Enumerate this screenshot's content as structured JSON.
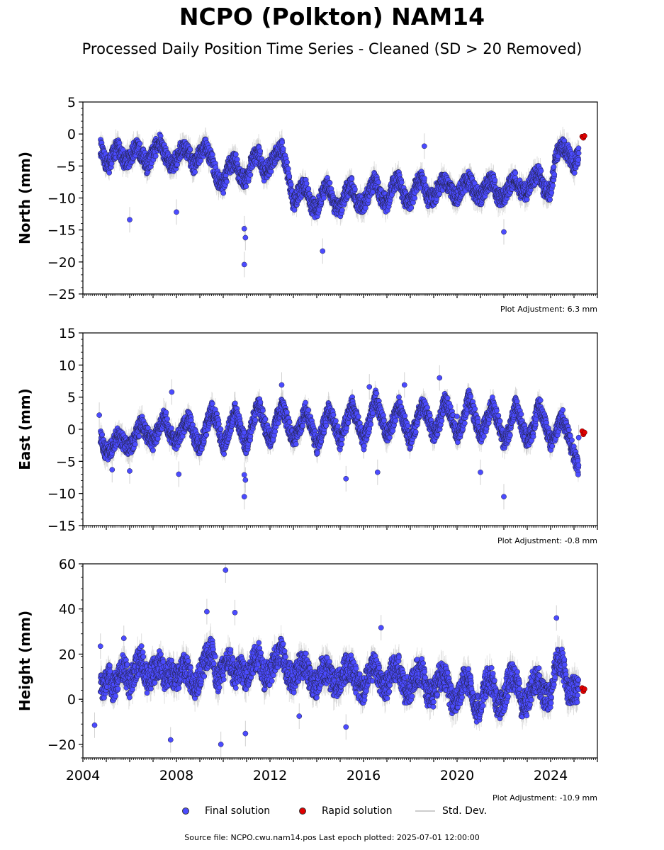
{
  "figure": {
    "title": "NCPO (Polkton) NAM14",
    "subtitle": "Processed Daily Position Time Series - Cleaned (SD > 20 Removed)",
    "footer": "Source file: NCPO.cwu.nam14.pos  Last epoch plotted: 2025-07-01 12:00:00",
    "legend": {
      "final": "Final solution",
      "rapid": "Rapid solution",
      "std": "Std. Dev."
    },
    "colors": {
      "final": "#4b4bff",
      "rapid": "#e00000",
      "std": "#c8c8c8",
      "edge": "#202040"
    }
  },
  "chart_data": [
    {
      "type": "scatter",
      "ylabel": "North (mm)",
      "adjustment": "Plot Adjustment: 6.3 mm",
      "xlim": [
        2004.0,
        2026.0
      ],
      "ylim": [
        -25,
        5
      ],
      "yticks": [
        5,
        0,
        -5,
        -10,
        -15,
        -20,
        -25
      ],
      "series": [
        {
          "name": "Final solution",
          "x": [
            2004.75,
            2004.9,
            2005.1,
            2005.3,
            2005.5,
            2005.75,
            2006.0,
            2006.25,
            2006.5,
            2006.75,
            2007.0,
            2007.25,
            2007.5,
            2007.75,
            2008.0,
            2008.25,
            2008.5,
            2008.75,
            2009.0,
            2009.25,
            2009.5,
            2009.75,
            2010.0,
            2010.25,
            2010.5,
            2010.75,
            2011.0,
            2011.25,
            2011.5,
            2011.75,
            2012.0,
            2012.25,
            2012.5,
            2012.75,
            2013.0,
            2013.25,
            2013.5,
            2013.75,
            2014.0,
            2014.25,
            2014.5,
            2014.75,
            2015.0,
            2015.25,
            2015.5,
            2015.75,
            2016.0,
            2016.25,
            2016.5,
            2016.75,
            2017.0,
            2017.25,
            2017.5,
            2017.75,
            2018.0,
            2018.25,
            2018.5,
            2018.75,
            2019.0,
            2019.25,
            2019.5,
            2019.75,
            2020.0,
            2020.25,
            2020.5,
            2020.75,
            2021.0,
            2021.25,
            2021.5,
            2021.75,
            2022.0,
            2022.25,
            2022.5,
            2022.75,
            2023.0,
            2023.25,
            2023.5,
            2023.75,
            2024.0,
            2024.25,
            2024.5,
            2024.75,
            2025.0,
            2025.2
          ],
          "y": [
            -2,
            -4,
            -5,
            -3,
            -2,
            -4,
            -4,
            -2,
            -3,
            -5,
            -3,
            -1,
            -3,
            -5,
            -4,
            -2,
            -3,
            -5,
            -3,
            -2,
            -4,
            -7,
            -8,
            -5,
            -4,
            -7,
            -7,
            -4,
            -3,
            -6,
            -5,
            -3,
            -2,
            -6,
            -11,
            -9,
            -8,
            -11,
            -12,
            -9,
            -8,
            -11,
            -12,
            -9,
            -8,
            -11,
            -11,
            -9,
            -7,
            -10,
            -11,
            -8,
            -7,
            -10,
            -11,
            -8,
            -7,
            -10,
            -10,
            -8,
            -7,
            -9,
            -10,
            -8,
            -7,
            -9,
            -10,
            -8,
            -7,
            -10,
            -10,
            -8,
            -7,
            -9,
            -9,
            -7,
            -6,
            -9,
            -9,
            -3,
            -2,
            -3,
            -5,
            -3
          ]
        },
        {
          "name": "Rapid solution",
          "x": [
            2025.35,
            2025.4,
            2025.45
          ],
          "y": [
            -0.4,
            -0.6,
            -0.3
          ]
        }
      ],
      "outliers": {
        "x": [
          2006.0,
          2008.0,
          2010.9,
          2010.95,
          2010.9,
          2014.25,
          2018.6,
          2022.0,
          2025.2
        ],
        "y": [
          -13.4,
          -12.2,
          -14.8,
          -16.2,
          -20.4,
          -18.3,
          -1.9,
          -15.3,
          -3
        ]
      }
    },
    {
      "type": "scatter",
      "ylabel": "East (mm)",
      "adjustment": "Plot Adjustment: -0.8 mm",
      "xlim": [
        2004.0,
        2026.0
      ],
      "ylim": [
        -15,
        15
      ],
      "yticks": [
        15,
        10,
        5,
        0,
        -5,
        -10,
        -15
      ],
      "series": [
        {
          "name": "Final solution",
          "x": [
            2004.75,
            2004.9,
            2005.1,
            2005.3,
            2005.5,
            2005.75,
            2006.0,
            2006.25,
            2006.5,
            2006.75,
            2007.0,
            2007.25,
            2007.5,
            2007.75,
            2008.0,
            2008.25,
            2008.5,
            2008.75,
            2009.0,
            2009.25,
            2009.5,
            2009.75,
            2010.0,
            2010.25,
            2010.5,
            2010.75,
            2011.0,
            2011.25,
            2011.5,
            2011.75,
            2012.0,
            2012.25,
            2012.5,
            2012.75,
            2013.0,
            2013.25,
            2013.5,
            2013.75,
            2014.0,
            2014.25,
            2014.5,
            2014.75,
            2015.0,
            2015.25,
            2015.5,
            2015.75,
            2016.0,
            2016.25,
            2016.5,
            2016.75,
            2017.0,
            2017.25,
            2017.5,
            2017.75,
            2018.0,
            2018.25,
            2018.5,
            2018.75,
            2019.0,
            2019.25,
            2019.5,
            2019.75,
            2020.0,
            2020.25,
            2020.5,
            2020.75,
            2021.0,
            2021.25,
            2021.5,
            2021.75,
            2022.0,
            2022.25,
            2022.5,
            2022.75,
            2023.0,
            2023.25,
            2023.5,
            2023.75,
            2024.0,
            2024.25,
            2024.5,
            2024.75,
            2025.0,
            2025.2
          ],
          "y": [
            -1,
            -3,
            -4,
            -2,
            -1,
            -2,
            -3,
            -1,
            1,
            -1,
            -2,
            0,
            2,
            -1,
            -2,
            0,
            2,
            -1,
            -3,
            0,
            3,
            1,
            -3,
            0,
            3,
            0,
            -3,
            1,
            4,
            1,
            -2,
            1,
            4,
            1,
            -2,
            0,
            3,
            1,
            -3,
            0,
            3,
            1,
            -2,
            1,
            4,
            1,
            -2,
            1,
            5,
            2,
            -1,
            1,
            4,
            1,
            -2,
            1,
            4,
            2,
            -1,
            1,
            5,
            2,
            -1,
            1,
            5,
            2,
            -1,
            1,
            4,
            1,
            -2,
            0,
            4,
            1,
            -2,
            0,
            4,
            1,
            -2,
            0,
            2,
            -1,
            -4,
            -6
          ]
        },
        {
          "name": "Rapid solution",
          "x": [
            2025.35,
            2025.4,
            2025.45
          ],
          "y": [
            -0.3,
            -0.8,
            -0.5
          ]
        }
      ],
      "outliers": {
        "x": [
          2004.7,
          2005.25,
          2006.0,
          2007.8,
          2008.1,
          2010.9,
          2010.95,
          2010.9,
          2012.5,
          2015.25,
          2016.25,
          2016.6,
          2017.75,
          2019.25,
          2020.0,
          2021.0,
          2022.0,
          2025.2
        ],
        "y": [
          2.2,
          -6.3,
          -6.5,
          5.8,
          -7.0,
          -7.1,
          -7.9,
          -10.5,
          6.9,
          -7.7,
          6.6,
          -6.7,
          6.9,
          8.0,
          2.0,
          -6.7,
          -10.5,
          -1.3
        ]
      }
    },
    {
      "type": "scatter",
      "ylabel": "Height (mm)",
      "adjustment": "Plot Adjustment: -10.9 mm",
      "xlim": [
        2004.0,
        2026.0
      ],
      "ylim": [
        -26,
        60
      ],
      "yticks": [
        60,
        40,
        20,
        0,
        -20
      ],
      "xticks": [
        2004,
        2008,
        2012,
        2016,
        2020,
        2024
      ],
      "series": [
        {
          "name": "Final solution",
          "x": [
            2004.75,
            2004.9,
            2005.1,
            2005.3,
            2005.5,
            2005.75,
            2006.0,
            2006.25,
            2006.5,
            2006.75,
            2007.0,
            2007.25,
            2007.5,
            2007.75,
            2008.0,
            2008.25,
            2008.5,
            2008.75,
            2009.0,
            2009.25,
            2009.5,
            2009.75,
            2010.0,
            2010.25,
            2010.5,
            2010.75,
            2011.0,
            2011.25,
            2011.5,
            2011.75,
            2012.0,
            2012.25,
            2012.5,
            2012.75,
            2013.0,
            2013.25,
            2013.5,
            2013.75,
            2014.0,
            2014.25,
            2014.5,
            2014.75,
            2015.0,
            2015.25,
            2015.5,
            2015.75,
            2016.0,
            2016.25,
            2016.5,
            2016.75,
            2017.0,
            2017.25,
            2017.5,
            2017.75,
            2018.0,
            2018.25,
            2018.5,
            2018.75,
            2019.0,
            2019.25,
            2019.5,
            2019.75,
            2020.0,
            2020.25,
            2020.5,
            2020.75,
            2021.0,
            2021.25,
            2021.5,
            2021.75,
            2022.0,
            2022.25,
            2022.5,
            2022.75,
            2023.0,
            2023.25,
            2023.5,
            2023.75,
            2024.0,
            2024.25,
            2024.5,
            2024.75,
            2025.0,
            2025.2
          ],
          "y": [
            8,
            5,
            12,
            4,
            10,
            15,
            6,
            14,
            18,
            8,
            12,
            16,
            10,
            12,
            8,
            15,
            12,
            5,
            10,
            18,
            22,
            8,
            14,
            18,
            10,
            14,
            8,
            16,
            20,
            10,
            12,
            18,
            22,
            12,
            8,
            14,
            16,
            8,
            6,
            14,
            12,
            6,
            8,
            14,
            14,
            6,
            4,
            12,
            16,
            6,
            6,
            14,
            14,
            4,
            4,
            12,
            12,
            2,
            2,
            10,
            10,
            0,
            -2,
            8,
            8,
            -4,
            -4,
            8,
            8,
            -4,
            0,
            10,
            10,
            -2,
            -2,
            8,
            8,
            0,
            2,
            18,
            16,
            4,
            4,
            5
          ]
        },
        {
          "name": "Rapid solution",
          "x": [
            2025.35,
            2025.4,
            2025.45
          ],
          "y": [
            5,
            3.5,
            4.5
          ]
        }
      ],
      "outliers": {
        "x": [
          2004.5,
          2004.75,
          2005.75,
          2007.75,
          2009.3,
          2009.9,
          2010.1,
          2010.5,
          2010.95,
          2013.25,
          2015.25,
          2016.75,
          2024.25
        ],
        "y": [
          -11.5,
          23.5,
          27,
          -18,
          38.8,
          -20,
          57.2,
          38.4,
          -15.2,
          -7.5,
          -12.3,
          31.7,
          36
        ]
      }
    }
  ]
}
